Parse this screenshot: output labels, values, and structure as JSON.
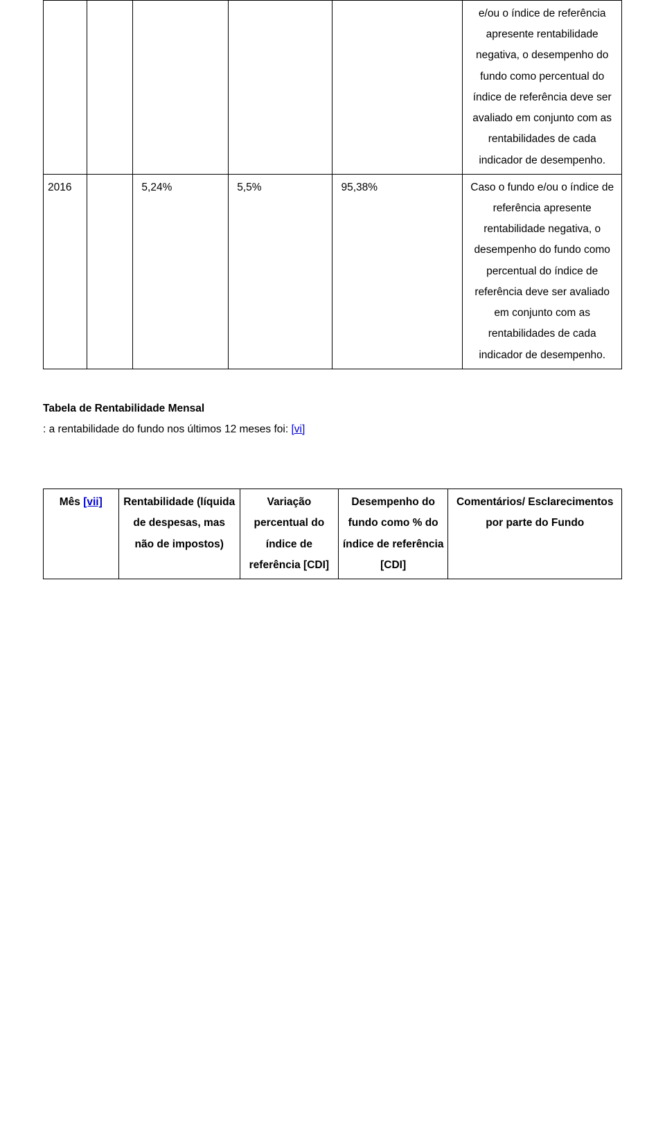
{
  "table1": {
    "row1": {
      "desc": "e/ou o índice de referência apresente rentabilidade negativa, o desempenho do fundo como percentual do índice de referência deve ser avaliado em conjunto com as rentabilidades de cada indicador de desempenho."
    },
    "row2": {
      "year": "2016",
      "v1": "5,24%",
      "v2": "5,5%",
      "v3": "95,38%",
      "desc": "Caso o fundo e/ou o índice de referência apresente rentabilidade negativa, o desempenho do fundo como percentual do índice de referência deve ser avaliado em conjunto com as rentabilidades de cada indicador de desempenho."
    }
  },
  "heading": "Tabela de Rentabilidade Mensal",
  "subline_prefix": ": a rentabilidade do fundo nos últimos 12 meses foi: ",
  "subline_link": "[vi]",
  "table2": {
    "h1_prefix": "Mês ",
    "h1_link": "[vii]",
    "h2": "Rentabilidade (líquida de despesas, mas não de impostos)",
    "h3": "Variação percentual do índice de referência [CDI]",
    "h4": "Desempenho do fundo como % do índice de referência [CDI]",
    "h5": "Comentários/ Esclarecimentos por parte do Fundo"
  }
}
